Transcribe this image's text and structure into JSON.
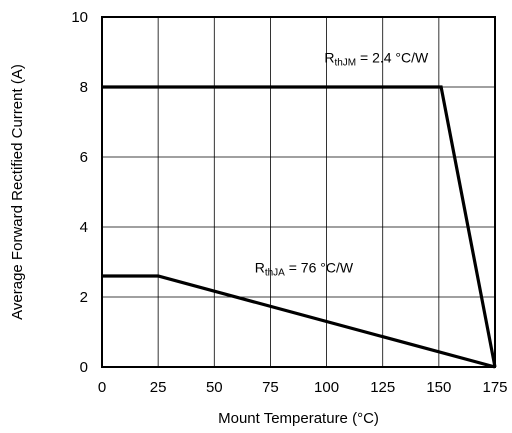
{
  "chart_data": {
    "type": "line",
    "xlabel": "Mount Temperature (°C)",
    "ylabel": "Average Forward Rectified Current (A)",
    "xlim": [
      0,
      175
    ],
    "ylim": [
      0,
      10
    ],
    "x_ticks": [
      "0",
      "25",
      "50",
      "75",
      "100",
      "125",
      "150",
      "175"
    ],
    "y_ticks": [
      "0",
      "2",
      "4",
      "6",
      "8",
      "10"
    ],
    "grid": true,
    "series": [
      {
        "points": [
          [
            0,
            8
          ],
          [
            151,
            8
          ],
          [
            175,
            0
          ]
        ]
      },
      {
        "points": [
          [
            0,
            2.6
          ],
          [
            25,
            2.6
          ],
          [
            175,
            0
          ]
        ]
      }
    ],
    "annotations": [
      {
        "main": "R",
        "sub": "thJM",
        "rest": " = 2.4 °C/W"
      },
      {
        "main": "R",
        "sub": "thJA",
        "rest": " = 76 °C/W"
      }
    ]
  }
}
